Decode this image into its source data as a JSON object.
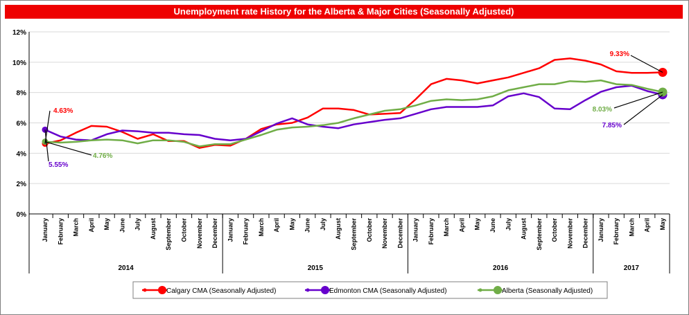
{
  "chart_data": {
    "type": "line",
    "title": "Unemployment rate History for the Alberta & Major Cities (Seasonally Adjusted)",
    "xlabel": "",
    "ylabel": "",
    "ylim": [
      0,
      12
    ],
    "y_ticks": [
      "0%",
      "2%",
      "4%",
      "6%",
      "8%",
      "10%",
      "12%"
    ],
    "grid": "horizontal",
    "legend_position": "bottom",
    "categories": [
      "January",
      "February",
      "March",
      "April",
      "May",
      "June",
      "July",
      "August",
      "September",
      "October",
      "November",
      "December",
      "January",
      "February",
      "March",
      "April",
      "May",
      "June",
      "July",
      "August",
      "September",
      "October",
      "November",
      "December",
      "January",
      "February",
      "March",
      "April",
      "May",
      "June",
      "July",
      "August",
      "September",
      "October",
      "November",
      "December",
      "January",
      "February",
      "March",
      "April",
      "May"
    ],
    "years": [
      {
        "label": "2014",
        "start": 0,
        "end": 11
      },
      {
        "label": "2015",
        "start": 12,
        "end": 23
      },
      {
        "label": "2016",
        "start": 24,
        "end": 35
      },
      {
        "label": "2017",
        "start": 36,
        "end": 40
      }
    ],
    "series": [
      {
        "name": "Calgary CMA (Seasonally Adjusted)",
        "color": "#ff0000",
        "values": [
          4.63,
          4.85,
          5.35,
          5.8,
          5.75,
          5.4,
          4.95,
          5.25,
          4.8,
          4.8,
          4.35,
          4.55,
          4.5,
          4.95,
          5.6,
          5.9,
          6.0,
          6.35,
          6.95,
          6.95,
          6.85,
          6.55,
          6.6,
          6.65,
          7.55,
          8.55,
          8.9,
          8.8,
          8.6,
          8.8,
          9.0,
          9.3,
          9.6,
          10.15,
          10.25,
          10.1,
          9.85,
          9.4,
          9.3,
          9.3,
          9.33
        ],
        "end_label": "9.33%",
        "start_label": "4.63%"
      },
      {
        "name": "Edmonton CMA (Seasonally Adjusted)",
        "color": "#6600cc",
        "values": [
          5.55,
          5.1,
          4.9,
          4.85,
          5.25,
          5.5,
          5.45,
          5.35,
          5.35,
          5.25,
          5.2,
          4.95,
          4.85,
          4.95,
          5.45,
          5.95,
          6.3,
          5.9,
          5.75,
          5.65,
          5.9,
          6.05,
          6.2,
          6.3,
          6.6,
          6.9,
          7.05,
          7.05,
          7.05,
          7.15,
          7.75,
          7.95,
          7.7,
          6.95,
          6.9,
          7.5,
          8.05,
          8.35,
          8.45,
          8.1,
          7.85
        ],
        "end_label": "7.85%",
        "start_label": "5.55%"
      },
      {
        "name": "Alberta (Seasonally Adjusted)",
        "color": "#70ad47",
        "values": [
          4.76,
          4.7,
          4.75,
          4.85,
          4.9,
          4.85,
          4.65,
          4.85,
          4.85,
          4.75,
          4.45,
          4.6,
          4.6,
          4.9,
          5.2,
          5.55,
          5.7,
          5.75,
          5.85,
          6.0,
          6.3,
          6.55,
          6.8,
          6.9,
          7.15,
          7.45,
          7.55,
          7.5,
          7.55,
          7.75,
          8.15,
          8.35,
          8.55,
          8.55,
          8.75,
          8.7,
          8.8,
          8.55,
          8.5,
          8.25,
          8.03
        ],
        "end_label": "8.03%",
        "start_label": "4.76%"
      }
    ]
  }
}
